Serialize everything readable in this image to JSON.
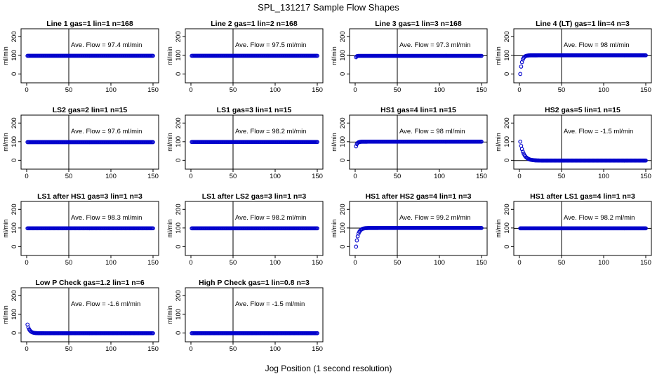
{
  "figure": {
    "title": "SPL_131217  Sample Flow Shapes",
    "xlabel": "Jog Position (1 second resolution)"
  },
  "style": {
    "point_color": "#0000cc",
    "axis_color": "#000000"
  },
  "chart_data": [
    {
      "type": "scatter",
      "title": "Line 1 gas=1 lin=1 n=168",
      "annotation": "Ave. Flow = 97.4  ml/min",
      "ylabel": "ml/min",
      "xlim": [
        0,
        150
      ],
      "ylim": [
        -25,
        220
      ],
      "xticks": [
        0,
        50,
        100,
        150
      ],
      "yticks": [
        0,
        100,
        200
      ],
      "vline": 50,
      "hline": null,
      "shape": {
        "kind": "flat",
        "level": 97.4,
        "from": 1,
        "to": 150
      }
    },
    {
      "type": "scatter",
      "title": "Line 2 gas=1 lin=2 n=168",
      "annotation": "Ave. Flow = 97.5  ml/min",
      "ylabel": "ml/min",
      "xlim": [
        0,
        150
      ],
      "ylim": [
        -25,
        220
      ],
      "xticks": [
        0,
        50,
        100,
        150
      ],
      "yticks": [
        0,
        100,
        200
      ],
      "vline": 50,
      "hline": null,
      "shape": {
        "kind": "flat",
        "level": 97.5,
        "from": 1,
        "to": 150
      }
    },
    {
      "type": "scatter",
      "title": "Line 3 gas=1 lin=3 n=168",
      "annotation": "Ave. Flow = 97.3  ml/min",
      "ylabel": "ml/min",
      "xlim": [
        0,
        150
      ],
      "ylim": [
        -25,
        220
      ],
      "xticks": [
        0,
        50,
        100,
        150
      ],
      "yticks": [
        0,
        100,
        200
      ],
      "vline": 50,
      "hline": 97.3,
      "shape": {
        "kind": "rise",
        "start": 90,
        "level": 97.3,
        "tau": 0.8,
        "from": 1,
        "to": 150
      }
    },
    {
      "type": "scatter",
      "title": "Line 4 (LT) gas=1 lin=4 n=3",
      "annotation": "Ave. Flow = 98  ml/min",
      "ylabel": "ml/min",
      "xlim": [
        0,
        150
      ],
      "ylim": [
        -25,
        220
      ],
      "xticks": [
        0,
        50,
        100,
        150
      ],
      "yticks": [
        0,
        100,
        200
      ],
      "vline": 50,
      "hline": 98,
      "shape": {
        "kind": "rise",
        "start": 0,
        "level": 100,
        "tau": 2.0,
        "from": 1,
        "to": 150
      }
    },
    {
      "type": "scatter",
      "title": "LS2 gas=2 lin=1 n=15",
      "annotation": "Ave. Flow = 97.6  ml/min",
      "ylabel": "ml/min",
      "xlim": [
        0,
        150
      ],
      "ylim": [
        -25,
        220
      ],
      "xticks": [
        0,
        50,
        100,
        150
      ],
      "yticks": [
        0,
        100,
        200
      ],
      "vline": 50,
      "hline": null,
      "shape": {
        "kind": "flat",
        "level": 97.6,
        "from": 1,
        "to": 150
      }
    },
    {
      "type": "scatter",
      "title": "LS1 gas=3 lin=1 n=15",
      "annotation": "Ave. Flow = 98.2  ml/min",
      "ylabel": "ml/min",
      "xlim": [
        0,
        150
      ],
      "ylim": [
        -25,
        220
      ],
      "xticks": [
        0,
        50,
        100,
        150
      ],
      "yticks": [
        0,
        100,
        200
      ],
      "vline": 50,
      "hline": null,
      "shape": {
        "kind": "flat",
        "level": 98.2,
        "from": 1,
        "to": 150
      }
    },
    {
      "type": "scatter",
      "title": "HS1 gas=4 lin=1 n=15",
      "annotation": "Ave. Flow = 98  ml/min",
      "ylabel": "ml/min",
      "xlim": [
        0,
        150
      ],
      "ylim": [
        -25,
        220
      ],
      "xticks": [
        0,
        50,
        100,
        150
      ],
      "yticks": [
        0,
        100,
        200
      ],
      "vline": 50,
      "hline": 98,
      "shape": {
        "kind": "rise",
        "start": 75,
        "level": 100,
        "tau": 1.5,
        "from": 1,
        "to": 150
      }
    },
    {
      "type": "scatter",
      "title": "HS2 gas=5 lin=1 n=15",
      "annotation": "Ave. Flow = -1.5 ml/min",
      "ylabel": "ml/min",
      "xlim": [
        0,
        150
      ],
      "ylim": [
        -25,
        220
      ],
      "xticks": [
        0,
        50,
        100,
        150
      ],
      "yticks": [
        0,
        100,
        200
      ],
      "vline": 50,
      "hline": -1.5,
      "shape": {
        "kind": "decay",
        "start": 100,
        "level": -1.5,
        "tau": 4.0,
        "from": 1,
        "to": 150
      }
    },
    {
      "type": "scatter",
      "title": "LS1 after HS1 gas=3 lin=1 n=3",
      "annotation": "Ave. Flow = 98.3  ml/min",
      "ylabel": "ml/min",
      "xlim": [
        0,
        150
      ],
      "ylim": [
        -25,
        220
      ],
      "xticks": [
        0,
        50,
        100,
        150
      ],
      "yticks": [
        0,
        100,
        200
      ],
      "vline": 50,
      "hline": null,
      "shape": {
        "kind": "flat",
        "level": 98.3,
        "from": 1,
        "to": 150
      }
    },
    {
      "type": "scatter",
      "title": "LS1 after LS2 gas=3 lin=1 n=3",
      "annotation": "Ave. Flow = 98.2  ml/min",
      "ylabel": "ml/min",
      "xlim": [
        0,
        150
      ],
      "ylim": [
        -25,
        220
      ],
      "xticks": [
        0,
        50,
        100,
        150
      ],
      "yticks": [
        0,
        100,
        200
      ],
      "vline": 50,
      "hline": null,
      "shape": {
        "kind": "flat",
        "level": 98.2,
        "from": 1,
        "to": 150
      }
    },
    {
      "type": "scatter",
      "title": "HS1 after HS2 gas=4 lin=1 n=3",
      "annotation": "Ave. Flow = 99.2  ml/min",
      "ylabel": "ml/min",
      "xlim": [
        0,
        150
      ],
      "ylim": [
        -25,
        220
      ],
      "xticks": [
        0,
        50,
        100,
        150
      ],
      "yticks": [
        0,
        100,
        200
      ],
      "vline": 50,
      "hline": 99.2,
      "shape": {
        "kind": "rise",
        "start": 0,
        "level": 100,
        "tau": 2.5,
        "from": 1,
        "to": 150
      }
    },
    {
      "type": "scatter",
      "title": "HS1 after LS1 gas=4 lin=1 n=3",
      "annotation": "Ave. Flow = 98.2  ml/min",
      "ylabel": "ml/min",
      "xlim": [
        0,
        150
      ],
      "ylim": [
        -25,
        220
      ],
      "xticks": [
        0,
        50,
        100,
        150
      ],
      "yticks": [
        0,
        100,
        200
      ],
      "vline": 50,
      "hline": 98.2,
      "shape": {
        "kind": "flat",
        "level": 98.2,
        "from": 1,
        "to": 150
      }
    },
    {
      "type": "scatter",
      "title": "Low P Check gas=1.2 lin=1 n=6",
      "annotation": "Ave. Flow = -1.6  ml/min",
      "ylabel": "ml/min",
      "xlim": [
        0,
        150
      ],
      "ylim": [
        -25,
        220
      ],
      "xticks": [
        0,
        50,
        100,
        150
      ],
      "yticks": [
        0,
        100,
        200
      ],
      "vline": 50,
      "hline": null,
      "shape": {
        "kind": "decay",
        "start": 45,
        "level": -1.6,
        "tau": 2.5,
        "from": 1,
        "to": 150
      }
    },
    {
      "type": "scatter",
      "title": "High P Check gas=1 lin=0.8 n=3",
      "annotation": "Ave. Flow = -1.5  ml/min",
      "ylabel": "ml/min",
      "xlim": [
        0,
        150
      ],
      "ylim": [
        -25,
        220
      ],
      "xticks": [
        0,
        50,
        100,
        150
      ],
      "yticks": [
        0,
        100,
        200
      ],
      "vline": 50,
      "hline": null,
      "shape": {
        "kind": "flat",
        "level": -1.5,
        "from": 1,
        "to": 150
      }
    }
  ]
}
